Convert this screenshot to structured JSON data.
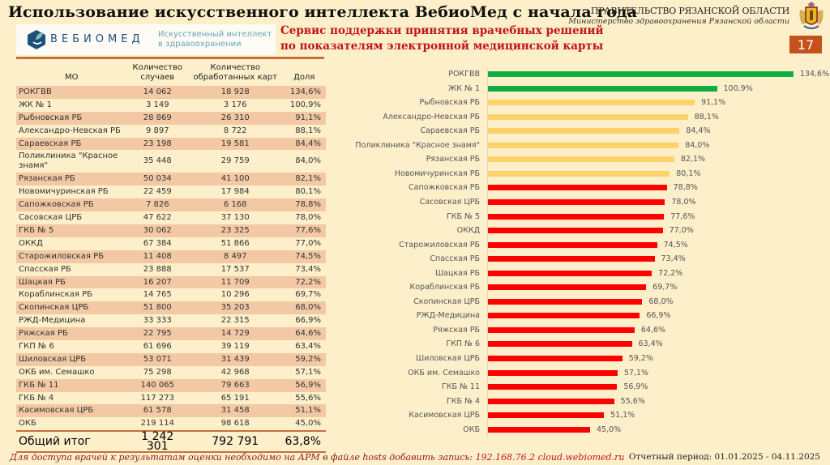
{
  "header": {
    "title": "Использование искусственного интеллекта ВебиоМед с начала года",
    "gov_line1": "ПРАВИТЕЛЬСТВО РЯЗАНСКОЙ ОБЛАСТИ",
    "gov_line2": "Министерство здравоохранения Рязанской области",
    "page_number": "17",
    "logo_text": "ВЕБИОМЕД",
    "logo_sub1": "Искусственный интеллект",
    "logo_sub2": "в здравоохранении",
    "service_line1": "Сервис поддержки принятия врачебных решений",
    "service_line2": "по показателям электронной медицинской карты"
  },
  "table": {
    "headers": [
      "МО",
      "Количество случаев",
      "Количество обработанных карт",
      "Доля"
    ],
    "rows": [
      {
        "mo": "РОКГВВ",
        "cases": "14 062",
        "cards": "18 928",
        "share": "134,6%"
      },
      {
        "mo": "ЖК № 1",
        "cases": "3 149",
        "cards": "3 176",
        "share": "100,9%"
      },
      {
        "mo": "Рыбновская РБ",
        "cases": "28 869",
        "cards": "26 310",
        "share": "91,1%"
      },
      {
        "mo": "Александро-Невская РБ",
        "cases": "9 897",
        "cards": "8 722",
        "share": "88,1%"
      },
      {
        "mo": "Сараевская РБ",
        "cases": "23 198",
        "cards": "19 581",
        "share": "84,4%"
      },
      {
        "mo": "Поликлиника \"Красное знамя\"",
        "cases": "35 448",
        "cards": "29 759",
        "share": "84,0%"
      },
      {
        "mo": "Рязанская РБ",
        "cases": "50 034",
        "cards": "41 100",
        "share": "82,1%"
      },
      {
        "mo": "Новомичуринская РБ",
        "cases": "22 459",
        "cards": "17 984",
        "share": "80,1%"
      },
      {
        "mo": "Сапожковская РБ",
        "cases": "7 826",
        "cards": "6 168",
        "share": "78,8%"
      },
      {
        "mo": "Сасовская ЦРБ",
        "cases": "47 622",
        "cards": "37 130",
        "share": "78,0%"
      },
      {
        "mo": "ГКБ № 5",
        "cases": "30 062",
        "cards": "23 325",
        "share": "77,6%"
      },
      {
        "mo": "ОККД",
        "cases": "67 384",
        "cards": "51 866",
        "share": "77,0%"
      },
      {
        "mo": "Старожиловская РБ",
        "cases": "11 408",
        "cards": "8 497",
        "share": "74,5%"
      },
      {
        "mo": "Спасская РБ",
        "cases": "23 888",
        "cards": "17 537",
        "share": "73,4%"
      },
      {
        "mo": "Шацкая РБ",
        "cases": "16 207",
        "cards": "11 709",
        "share": "72,2%"
      },
      {
        "mo": "Кораблинская РБ",
        "cases": "14 765",
        "cards": "10 296",
        "share": "69,7%"
      },
      {
        "mo": "Скопинская ЦРБ",
        "cases": "51 800",
        "cards": "35 203",
        "share": "68,0%"
      },
      {
        "mo": "РЖД-Медицина",
        "cases": "33 333",
        "cards": "22 315",
        "share": "66,9%"
      },
      {
        "mo": "Ряжская РБ",
        "cases": "22 795",
        "cards": "14 729",
        "share": "64,6%"
      },
      {
        "mo": "ГКП № 6",
        "cases": "61 696",
        "cards": "39 119",
        "share": "63,4%"
      },
      {
        "mo": "Шиловская ЦРБ",
        "cases": "53 071",
        "cards": "31 439",
        "share": "59,2%"
      },
      {
        "mo": "ОКБ им. Семашко",
        "cases": "75 298",
        "cards": "42 968",
        "share": "57,1%"
      },
      {
        "mo": "ГКБ № 11",
        "cases": "140 065",
        "cards": "79 663",
        "share": "56,9%"
      },
      {
        "mo": "ГКБ № 4",
        "cases": "117 273",
        "cards": "65 191",
        "share": "55,6%"
      },
      {
        "mo": "Касимовская ЦРБ",
        "cases": "61 578",
        "cards": "31 458",
        "share": "51,1%"
      },
      {
        "mo": "ОКБ",
        "cases": "219 114",
        "cards": "98 618",
        "share": "45,0%"
      }
    ],
    "total": {
      "label": "Общий итог",
      "cases": "1 242 301",
      "cards": "792 791",
      "share": "63,8%"
    }
  },
  "footer": {
    "note": "Для доступа врачей к результатам оценки необходимо на АРМ в файле hosts добавить запись: ",
    "ip": "192.168.76.2 cloud.webiomed.ru",
    "period": "Отчетный период: 01.01.2025 - 04.11.2025"
  },
  "chart_data": {
    "type": "bar",
    "orientation": "horizontal",
    "title": "",
    "xlabel": "",
    "ylabel": "",
    "grid": false,
    "legend": "none",
    "xlim": [
      0,
      140
    ],
    "colors": {
      "high": "#0fae45",
      "mid": "#fdd26a",
      "low": "#fe0000"
    },
    "categories": [
      "РОКГВВ",
      "ЖК № 1",
      "Рыбновская РБ",
      "Александро-Невская РБ",
      "Сараевская РБ",
      "Поликлиника \"Красное знамя\"",
      "Рязанская РБ",
      "Новомичуринская РБ",
      "Сапожковская РБ",
      "Сасовская ЦРБ",
      "ГКБ № 5",
      "ОККД",
      "Старожиловская РБ",
      "Спасская РБ",
      "Шацкая РБ",
      "Кораблинская РБ",
      "Скопинская ЦРБ",
      "РЖД-Медицина",
      "Ряжская РБ",
      "ГКП № 6",
      "Шиловская ЦРБ",
      "ОКБ им. Семашко",
      "ГКБ № 11",
      "ГКБ № 4",
      "Касимовская ЦРБ",
      "ОКБ"
    ],
    "values": [
      134.6,
      100.9,
      91.1,
      88.1,
      84.4,
      84.0,
      82.1,
      80.1,
      78.8,
      78.0,
      77.6,
      77.0,
      74.5,
      73.4,
      72.2,
      69.7,
      68.0,
      66.9,
      64.6,
      63.4,
      59.2,
      57.1,
      56.9,
      55.6,
      51.1,
      45.0
    ],
    "labels": [
      "134,6%",
      "100,9%",
      "91,1%",
      "88,1%",
      "84,4%",
      "84,0%",
      "82,1%",
      "80,1%",
      "78,8%",
      "78,0%",
      "77,6%",
      "77,0%",
      "74,5%",
      "73,4%",
      "72,2%",
      "69,7%",
      "68,0%",
      "66,9%",
      "64,6%",
      "63,4%",
      "59,2%",
      "57,1%",
      "56,9%",
      "55,6%",
      "51,1%",
      "45,0%"
    ],
    "color_groups": [
      "high",
      "high",
      "mid",
      "mid",
      "mid",
      "mid",
      "mid",
      "mid",
      "low",
      "low",
      "low",
      "low",
      "low",
      "low",
      "low",
      "low",
      "low",
      "low",
      "low",
      "low",
      "low",
      "low",
      "low",
      "low",
      "low",
      "low"
    ]
  }
}
